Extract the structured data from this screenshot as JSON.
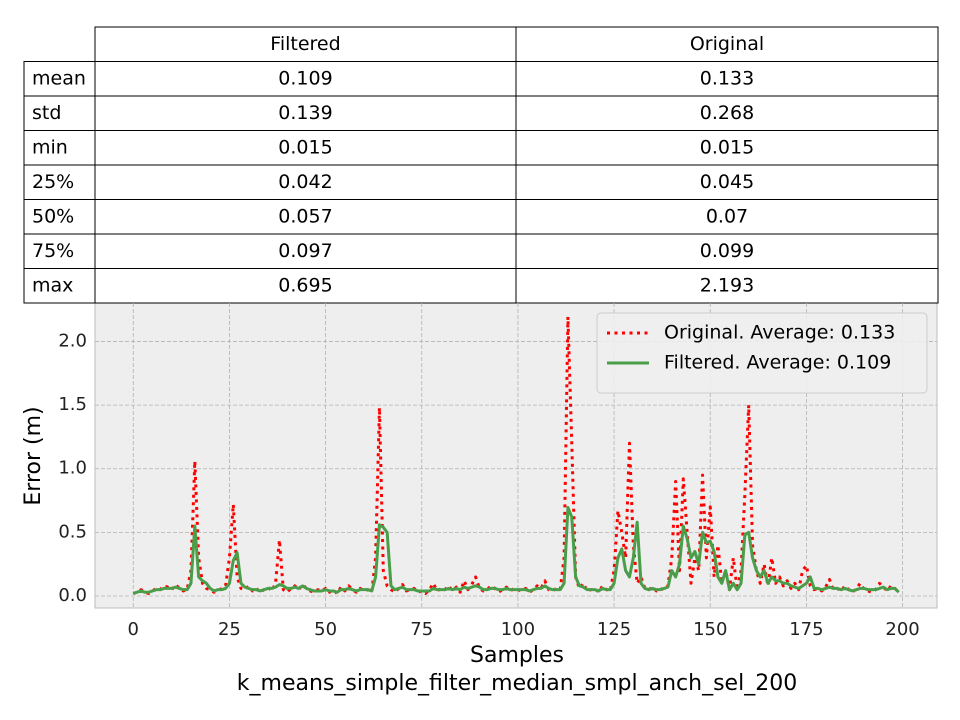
{
  "table": {
    "columns": [
      "Filtered",
      "Original"
    ],
    "rows": [
      {
        "label": "mean",
        "values": [
          0.109,
          0.133
        ]
      },
      {
        "label": "std",
        "values": [
          0.139,
          0.268
        ]
      },
      {
        "label": "min",
        "values": [
          0.015,
          0.015
        ]
      },
      {
        "label": "25%",
        "values": [
          0.042,
          0.045
        ]
      },
      {
        "label": "50%",
        "values": [
          0.057,
          0.07
        ]
      },
      {
        "label": "75%",
        "values": [
          0.097,
          0.099
        ]
      },
      {
        "label": "max",
        "values": [
          0.695,
          2.193
        ]
      }
    ]
  },
  "chart_data": {
    "type": "line",
    "xlabel": "Samples",
    "caption": "k_means_simple_filter_median_smpl_anch_sel_200",
    "ylabel": "Error (m)",
    "x": [
      0,
      1,
      2,
      3,
      4,
      5,
      6,
      7,
      8,
      9,
      10,
      11,
      12,
      13,
      14,
      15,
      16,
      17,
      18,
      19,
      20,
      21,
      22,
      23,
      24,
      25,
      26,
      27,
      28,
      29,
      30,
      31,
      32,
      33,
      34,
      35,
      36,
      37,
      38,
      39,
      40,
      41,
      42,
      43,
      44,
      45,
      46,
      47,
      48,
      49,
      50,
      51,
      52,
      53,
      54,
      55,
      56,
      57,
      58,
      59,
      60,
      61,
      62,
      63,
      64,
      65,
      66,
      67,
      68,
      69,
      70,
      71,
      72,
      73,
      74,
      75,
      76,
      77,
      78,
      79,
      80,
      81,
      82,
      83,
      84,
      85,
      86,
      87,
      88,
      89,
      90,
      91,
      92,
      93,
      94,
      95,
      96,
      97,
      98,
      99,
      100,
      101,
      102,
      103,
      104,
      105,
      106,
      107,
      108,
      109,
      110,
      111,
      112,
      113,
      114,
      115,
      116,
      117,
      118,
      119,
      120,
      121,
      122,
      123,
      124,
      125,
      126,
      127,
      128,
      129,
      130,
      131,
      132,
      133,
      134,
      135,
      136,
      137,
      138,
      139,
      140,
      141,
      142,
      143,
      144,
      145,
      146,
      147,
      148,
      149,
      150,
      151,
      152,
      153,
      154,
      155,
      156,
      157,
      158,
      159,
      160,
      161,
      162,
      163,
      164,
      165,
      166,
      167,
      168,
      169,
      170,
      171,
      172,
      173,
      174,
      175,
      176,
      177,
      178,
      179,
      180,
      181,
      182,
      183,
      184,
      185,
      186,
      187,
      188,
      189,
      190,
      191,
      192,
      193,
      194,
      195,
      196,
      197,
      198,
      199
    ],
    "series": [
      {
        "name": "Original. Average: 0.133",
        "color": "#ff0000",
        "style": "dotted",
        "values": [
          0.02,
          0.03,
          0.05,
          0.03,
          0.02,
          0.04,
          0.06,
          0.05,
          0.08,
          0.07,
          0.05,
          0.09,
          0.06,
          0.04,
          0.05,
          0.2,
          1.06,
          0.3,
          0.1,
          0.06,
          0.05,
          0.03,
          0.04,
          0.06,
          0.08,
          0.3,
          0.72,
          0.15,
          0.06,
          0.05,
          0.08,
          0.04,
          0.06,
          0.03,
          0.05,
          0.07,
          0.04,
          0.1,
          0.44,
          0.05,
          0.03,
          0.06,
          0.08,
          0.05,
          0.09,
          0.06,
          0.04,
          0.03,
          0.05,
          0.04,
          0.06,
          0.03,
          0.05,
          0.02,
          0.07,
          0.04,
          0.08,
          0.05,
          0.03,
          0.06,
          0.04,
          0.05,
          0.03,
          0.3,
          1.48,
          0.2,
          0.08,
          0.05,
          0.03,
          0.06,
          0.09,
          0.04,
          0.05,
          0.06,
          0.03,
          0.04,
          0.02,
          0.05,
          0.1,
          0.04,
          0.06,
          0.05,
          0.08,
          0.04,
          0.07,
          0.03,
          0.12,
          0.05,
          0.09,
          0.15,
          0.06,
          0.04,
          0.05,
          0.08,
          0.06,
          0.03,
          0.05,
          0.07,
          0.04,
          0.06,
          0.05,
          0.04,
          0.06,
          0.03,
          0.05,
          0.08,
          0.06,
          0.12,
          0.05,
          0.04,
          0.06,
          0.05,
          0.3,
          2.193,
          1.2,
          0.15,
          0.06,
          0.1,
          0.04,
          0.05,
          0.06,
          0.03,
          0.08,
          0.05,
          0.04,
          0.2,
          0.67,
          0.5,
          0.3,
          1.2,
          0.4,
          0.1,
          0.15,
          0.06,
          0.05,
          0.07,
          0.04,
          0.06,
          0.05,
          0.08,
          0.3,
          0.9,
          0.2,
          0.92,
          0.5,
          0.1,
          0.3,
          0.2,
          0.95,
          0.3,
          0.7,
          0.15,
          0.4,
          0.1,
          0.2,
          0.05,
          0.3,
          0.05,
          0.2,
          0.8,
          1.5,
          0.4,
          0.2,
          0.1,
          0.25,
          0.08,
          0.3,
          0.1,
          0.15,
          0.08,
          0.12,
          0.06,
          0.1,
          0.05,
          0.2,
          0.24,
          0.08,
          0.05,
          0.06,
          0.04,
          0.07,
          0.13,
          0.05,
          0.06,
          0.04,
          0.08,
          0.05,
          0.03,
          0.06,
          0.1,
          0.05,
          0.04,
          0.03,
          0.05,
          0.1,
          0.07,
          0.04,
          0.08,
          0.06,
          0.03
        ]
      },
      {
        "name": "Filtered. Average: 0.109",
        "color": "#4a9e4a",
        "style": "solid",
        "values": [
          0.02,
          0.03,
          0.04,
          0.03,
          0.03,
          0.04,
          0.05,
          0.05,
          0.06,
          0.06,
          0.06,
          0.07,
          0.06,
          0.05,
          0.05,
          0.1,
          0.55,
          0.15,
          0.12,
          0.1,
          0.06,
          0.04,
          0.05,
          0.05,
          0.06,
          0.1,
          0.28,
          0.34,
          0.1,
          0.07,
          0.06,
          0.05,
          0.05,
          0.04,
          0.05,
          0.06,
          0.06,
          0.07,
          0.09,
          0.08,
          0.06,
          0.06,
          0.07,
          0.06,
          0.08,
          0.06,
          0.05,
          0.04,
          0.04,
          0.04,
          0.05,
          0.04,
          0.04,
          0.03,
          0.05,
          0.05,
          0.06,
          0.05,
          0.04,
          0.05,
          0.05,
          0.05,
          0.04,
          0.15,
          0.56,
          0.54,
          0.5,
          0.08,
          0.05,
          0.06,
          0.07,
          0.05,
          0.05,
          0.05,
          0.04,
          0.04,
          0.04,
          0.04,
          0.06,
          0.05,
          0.05,
          0.05,
          0.06,
          0.05,
          0.06,
          0.05,
          0.07,
          0.06,
          0.07,
          0.08,
          0.07,
          0.05,
          0.05,
          0.06,
          0.06,
          0.05,
          0.05,
          0.06,
          0.05,
          0.05,
          0.05,
          0.05,
          0.05,
          0.04,
          0.05,
          0.06,
          0.06,
          0.08,
          0.06,
          0.05,
          0.05,
          0.05,
          0.1,
          0.695,
          0.62,
          0.15,
          0.08,
          0.07,
          0.05,
          0.05,
          0.05,
          0.04,
          0.06,
          0.05,
          0.05,
          0.1,
          0.3,
          0.37,
          0.2,
          0.15,
          0.3,
          0.58,
          0.1,
          0.06,
          0.05,
          0.06,
          0.05,
          0.05,
          0.06,
          0.07,
          0.2,
          0.15,
          0.25,
          0.55,
          0.45,
          0.3,
          0.35,
          0.25,
          0.5,
          0.42,
          0.43,
          0.35,
          0.15,
          0.1,
          0.2,
          0.05,
          0.1,
          0.05,
          0.1,
          0.48,
          0.5,
          0.3,
          0.2,
          0.15,
          0.2,
          0.1,
          0.15,
          0.12,
          0.12,
          0.1,
          0.1,
          0.08,
          0.07,
          0.06,
          0.08,
          0.1,
          0.15,
          0.06,
          0.06,
          0.05,
          0.06,
          0.07,
          0.06,
          0.06,
          0.05,
          0.06,
          0.05,
          0.04,
          0.05,
          0.06,
          0.06,
          0.05,
          0.05,
          0.05,
          0.06,
          0.07,
          0.05,
          0.06,
          0.06,
          0.03
        ]
      }
    ],
    "xlim": [
      -9.95,
      208.95
    ],
    "xticks": [
      0,
      25,
      50,
      75,
      100,
      125,
      150,
      175,
      200
    ],
    "ylim": [
      -0.094,
      2.302
    ],
    "yticks": [
      {
        "value": 0,
        "label": "0.0"
      },
      0.5,
      {
        "value": 1,
        "label": "1.0"
      },
      1.5,
      {
        "value": 2,
        "label": "2.0"
      }
    ],
    "grid": true,
    "legend": "upper right"
  }
}
